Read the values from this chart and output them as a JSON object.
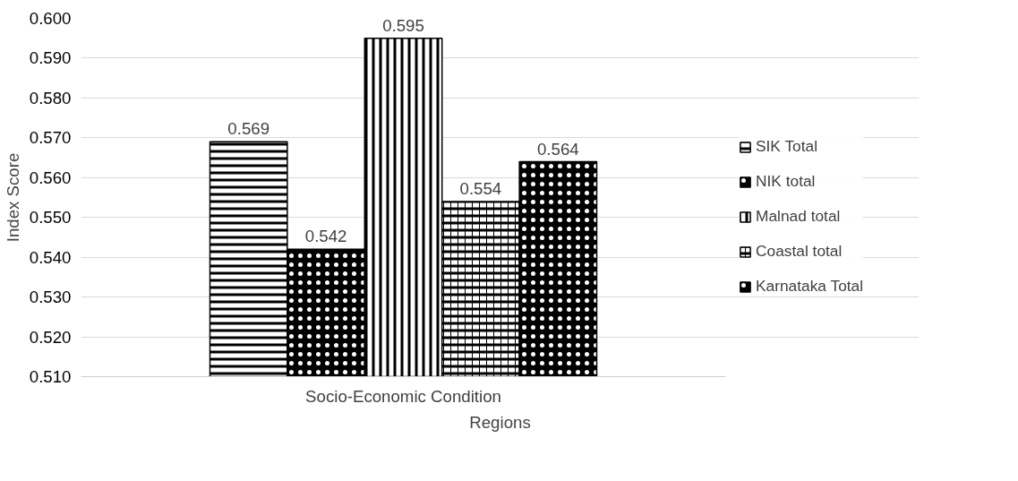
{
  "chart_data": {
    "type": "bar",
    "xlabel": "Regions",
    "ylabel": "Index Score",
    "categories": [
      "Socio-Economic Condition"
    ],
    "series": [
      {
        "name": "SIK Total",
        "color": "#000000",
        "values": [
          0.569
        ]
      },
      {
        "name": "NIK total",
        "color": "#000000",
        "values": [
          0.542
        ]
      },
      {
        "name": "Malnad total",
        "color": "#000000",
        "values": [
          0.595
        ]
      },
      {
        "name": "Coastal total",
        "color": "#000000",
        "values": [
          0.554
        ]
      },
      {
        "name": "Karnataka Total",
        "color": "#000000",
        "values": [
          0.564
        ]
      }
    ],
    "ylim": [
      0.51,
      0.6
    ],
    "yticks": [
      {
        "value": 0.51,
        "label": "0.510"
      },
      {
        "value": 0.52,
        "label": "0.520"
      },
      {
        "value": 0.53,
        "label": "0.530"
      },
      {
        "value": 0.54,
        "label": "0.540"
      },
      {
        "value": 0.55,
        "label": "0.550"
      },
      {
        "value": 0.56,
        "label": "0.560"
      },
      {
        "value": 0.57,
        "label": "0.570"
      },
      {
        "value": 0.58,
        "label": "0.580"
      },
      {
        "value": 0.59,
        "label": "0.590"
      },
      {
        "value": 0.6,
        "label": "0.600"
      }
    ],
    "grid": "y",
    "legend": "right",
    "data_labels": true
  }
}
